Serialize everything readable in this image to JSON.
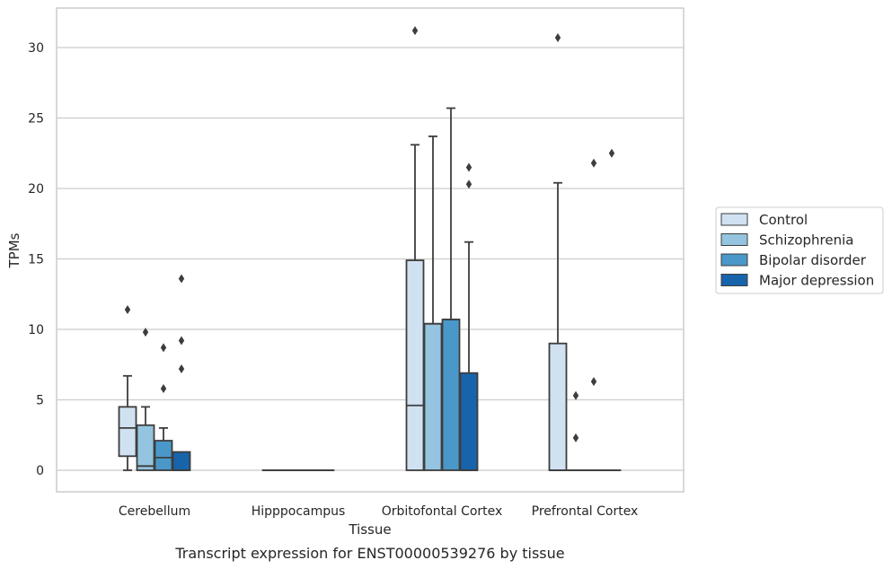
{
  "chart_data": {
    "type": "box",
    "xlabel": "Tissue",
    "ylabel": "TPMs",
    "caption": "Transcript expression for ENST00000539276 by tissue",
    "ylim": [
      -1.5,
      32.5
    ],
    "yticks": [
      0,
      5,
      10,
      15,
      20,
      25,
      30
    ],
    "grid": "horizontal",
    "legend_position": "right",
    "categories": [
      "Cerebellum",
      "Hipppocampus",
      "Orbitofontal Cortex",
      "Prefrontal Cortex"
    ],
    "series": [
      {
        "name": "Control",
        "color": "#d0e1f2",
        "boxes": [
          {
            "min": 0,
            "q1": 1.0,
            "median": 3.0,
            "q3": 4.5,
            "max": 6.7,
            "outliers": [
              11.4
            ]
          },
          {
            "min": 0,
            "q1": 0,
            "median": 0,
            "q3": 0,
            "max": 0,
            "outliers": []
          },
          {
            "min": 0,
            "q1": 0,
            "median": 4.6,
            "q3": 14.9,
            "max": 23.1,
            "outliers": [
              31.2
            ]
          },
          {
            "min": 0,
            "q1": 0,
            "median": 0,
            "q3": 9.0,
            "max": 20.4,
            "outliers": [
              30.7
            ]
          }
        ]
      },
      {
        "name": "Schizophrenia",
        "color": "#94c4df",
        "boxes": [
          {
            "min": 0,
            "q1": 0,
            "median": 0.3,
            "q3": 3.2,
            "max": 4.5,
            "outliers": [
              9.8
            ]
          },
          {
            "min": 0,
            "q1": 0,
            "median": 0,
            "q3": 0,
            "max": 0,
            "outliers": []
          },
          {
            "min": 0,
            "q1": 0,
            "median": 10.4,
            "q3": 10.4,
            "max": 23.7,
            "outliers": []
          },
          {
            "min": 0,
            "q1": 0,
            "median": 0,
            "q3": 0,
            "max": 0,
            "outliers": [
              2.3,
              5.3
            ]
          }
        ]
      },
      {
        "name": "Bipolar disorder",
        "color": "#4a98c9",
        "boxes": [
          {
            "min": 0,
            "q1": 0,
            "median": 0.9,
            "q3": 2.1,
            "max": 3.0,
            "outliers": [
              5.8,
              8.7
            ]
          },
          {
            "min": 0,
            "q1": 0,
            "median": 0,
            "q3": 0,
            "max": 0,
            "outliers": []
          },
          {
            "min": 0,
            "q1": 0,
            "median": 10.7,
            "q3": 10.7,
            "max": 25.7,
            "outliers": []
          },
          {
            "min": 0,
            "q1": 0,
            "median": 0,
            "q3": 0,
            "max": 0,
            "outliers": [
              6.3,
              21.8
            ]
          }
        ]
      },
      {
        "name": "Major depression",
        "color": "#1764ab",
        "boxes": [
          {
            "min": 0,
            "q1": 0,
            "median": 0,
            "q3": 1.3,
            "max": 1.3,
            "outliers": [
              7.2,
              9.2,
              13.6
            ]
          },
          {
            "min": 0,
            "q1": 0,
            "median": 0,
            "q3": 0,
            "max": 0,
            "outliers": []
          },
          {
            "min": 0,
            "q1": 0,
            "median": 0,
            "q3": 6.9,
            "max": 16.2,
            "outliers": [
              20.3,
              21.5
            ]
          },
          {
            "min": 0,
            "q1": 0,
            "median": 0,
            "q3": 0,
            "max": 0,
            "outliers": [
              22.5
            ]
          }
        ]
      }
    ]
  }
}
